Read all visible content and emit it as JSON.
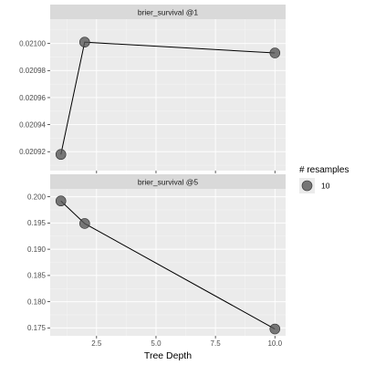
{
  "chart_data": [
    {
      "type": "scatter",
      "panel": "brier_survival @1",
      "x": [
        1,
        2,
        10
      ],
      "y": [
        0.020918,
        0.021001,
        0.020993
      ],
      "xlim": [
        0.55,
        10.45
      ],
      "ylim": [
        0.020906,
        0.021018
      ],
      "yticks": [
        0.02092,
        0.02094,
        0.02096,
        0.02098,
        0.021
      ],
      "ytick_labels": [
        "0.02092",
        "0.02094",
        "0.02096",
        "0.02098",
        "0.02100"
      ],
      "grid": true
    },
    {
      "type": "scatter",
      "panel": "brier_survival @5",
      "x": [
        1,
        2,
        10
      ],
      "y": [
        0.1992,
        0.1949,
        0.1748
      ],
      "xlim": [
        0.55,
        10.45
      ],
      "ylim": [
        0.1735,
        0.2015
      ],
      "yticks": [
        0.175,
        0.18,
        0.185,
        0.19,
        0.195,
        0.2
      ],
      "ytick_labels": [
        "0.175",
        "0.180",
        "0.185",
        "0.190",
        "0.195",
        "0.200"
      ],
      "grid": true
    }
  ],
  "x_axis": {
    "label": "Tree Depth",
    "ticks": [
      2.5,
      5.0,
      7.5,
      10.0
    ],
    "tick_labels": [
      "2.5",
      "5.0",
      "7.5",
      "10.0"
    ]
  },
  "legend": {
    "title": "# resamples",
    "entries": [
      {
        "label": "10",
        "color": "#555555"
      }
    ],
    "placement": "right"
  },
  "colors": {
    "panel": "#ebebeb",
    "strip": "#d9d9d9",
    "point": "#555555",
    "line": "#000000"
  }
}
